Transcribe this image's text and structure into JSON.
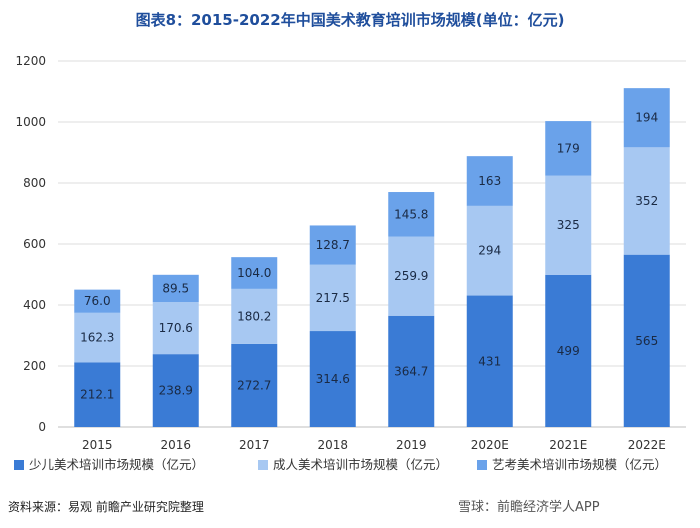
{
  "title": "图表8：2015-2022年中国美术教育培训市场规模(单位：亿元)",
  "source": "资料来源：易观 前瞻产业研究院整理",
  "footer_watermark": "雪球：前瞻经济学人APP",
  "colors": {
    "s1": "#3a7bd5",
    "s2": "#a7c8f2",
    "s3": "#6aa2ea",
    "grid": "#dcdcdc",
    "axis": "#bfbfbf"
  },
  "chart_data": {
    "type": "bar",
    "stacked": true,
    "categories": [
      "2015",
      "2016",
      "2017",
      "2018",
      "2019",
      "2020E",
      "2021E",
      "2022E"
    ],
    "series": [
      {
        "name": "少儿美术培训市场规模（亿元）",
        "values": [
          212.1,
          238.9,
          272.7,
          314.6,
          364.7,
          431,
          499,
          565
        ]
      },
      {
        "name": "成人美术培训市场规模（亿元）",
        "values": [
          162.3,
          170.6,
          180.2,
          217.5,
          259.9,
          294,
          325,
          352
        ]
      },
      {
        "name": "艺考美术培训市场规模（亿元）",
        "values": [
          76.0,
          89.5,
          104.0,
          128.7,
          145.8,
          163,
          179,
          194
        ]
      }
    ],
    "data_labels": [
      [
        "212.1",
        "238.9",
        "272.7",
        "314.6",
        "364.7",
        "431",
        "499",
        "565"
      ],
      [
        "162.3",
        "170.6",
        "180.2",
        "217.5",
        "259.9",
        "294",
        "325",
        "352"
      ],
      [
        "76.0",
        "89.5",
        "104.0",
        "128.7",
        "145.8",
        "163",
        "179",
        "194"
      ]
    ],
    "yticks": [
      0,
      200,
      400,
      600,
      800,
      1000,
      1200
    ],
    "ylim": [
      0,
      1200
    ],
    "grid": true,
    "legend_position": "bottom"
  }
}
